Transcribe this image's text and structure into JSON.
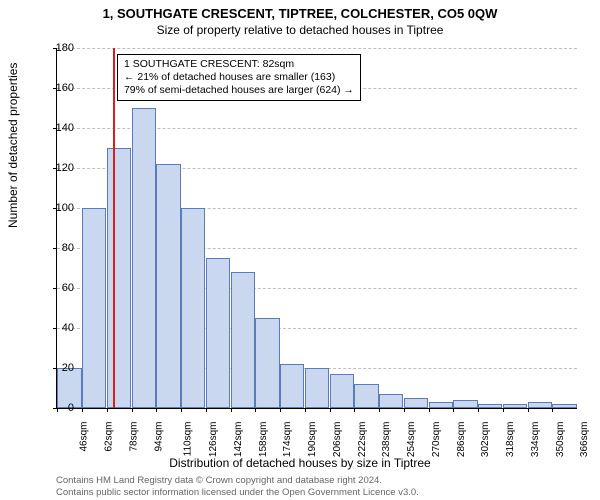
{
  "title": "1, SOUTHGATE CRESCENT, TIPTREE, COLCHESTER, CO5 0QW",
  "subtitle": "Size of property relative to detached houses in Tiptree",
  "ylabel": "Number of detached properties",
  "xlabel": "Distribution of detached houses by size in Tiptree",
  "footer_line1": "Contains HM Land Registry data © Crown copyright and database right 2024.",
  "footer_line2": "Contains public sector information licensed under the Open Government Licence v3.0.",
  "chart": {
    "type": "histogram",
    "ylim": [
      0,
      180
    ],
    "ytick_step": 20,
    "x_start": 46,
    "x_step": 16,
    "x_unit": "sqm",
    "n_bars": 21,
    "values": [
      20,
      100,
      130,
      150,
      122,
      100,
      75,
      68,
      45,
      22,
      20,
      17,
      12,
      7,
      5,
      3,
      4,
      2,
      2,
      3,
      2
    ],
    "bar_fill": "#c9d8ef",
    "bar_border": "#5b7cb8",
    "grid_color": "#bfbfbf",
    "background_color": "#ffffff",
    "marker": {
      "x_value": 82,
      "color": "#d62020"
    },
    "annotation": {
      "line1": "1 SOUTHGATE CRESCENT: 82sqm",
      "line2": "← 21% of detached houses are smaller (163)",
      "line3": "79% of semi-detached houses are larger (624) →"
    }
  }
}
